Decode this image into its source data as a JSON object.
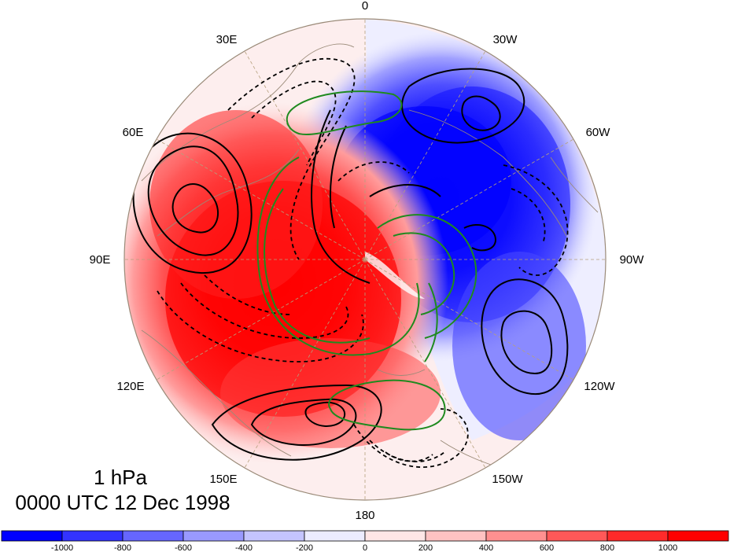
{
  "map": {
    "projection": "north-polar-stereographic",
    "longitude_labels": [
      {
        "text": "0",
        "lon": 0
      },
      {
        "text": "30W",
        "lon": -30
      },
      {
        "text": "60W",
        "lon": -60
      },
      {
        "text": "90W",
        "lon": -90
      },
      {
        "text": "120W",
        "lon": -120
      },
      {
        "text": "150W",
        "lon": -150
      },
      {
        "text": "180",
        "lon": 180
      },
      {
        "text": "150E",
        "lon": 150
      },
      {
        "text": "120E",
        "lon": 120
      },
      {
        "text": "90E",
        "lon": 90
      },
      {
        "text": "60E",
        "lon": 60
      },
      {
        "text": "30E",
        "lon": 30
      }
    ],
    "fill_field": {
      "description_colors": {
        "negative": "#0000ff",
        "positive": "#ff0000"
      }
    },
    "contour_colors": {
      "solid": "#000000",
      "dashed": "#000000",
      "green": "#1f8a1f"
    }
  },
  "title": {
    "level": "1 hPa",
    "time": "0000 UTC 12 Dec 1998"
  },
  "colorbar": {
    "ticks": [
      "-1000",
      "-800",
      "-600",
      "-400",
      "-200",
      "0",
      "200",
      "400",
      "600",
      "800",
      "1000"
    ],
    "colors": [
      "#0000ff",
      "#3333ff",
      "#6666ff",
      "#9999ff",
      "#c4c4ff",
      "#ececff",
      "#ffe6e6",
      "#ffc2c2",
      "#ff9090",
      "#ff5858",
      "#ff2a2a",
      "#ff0000"
    ]
  }
}
